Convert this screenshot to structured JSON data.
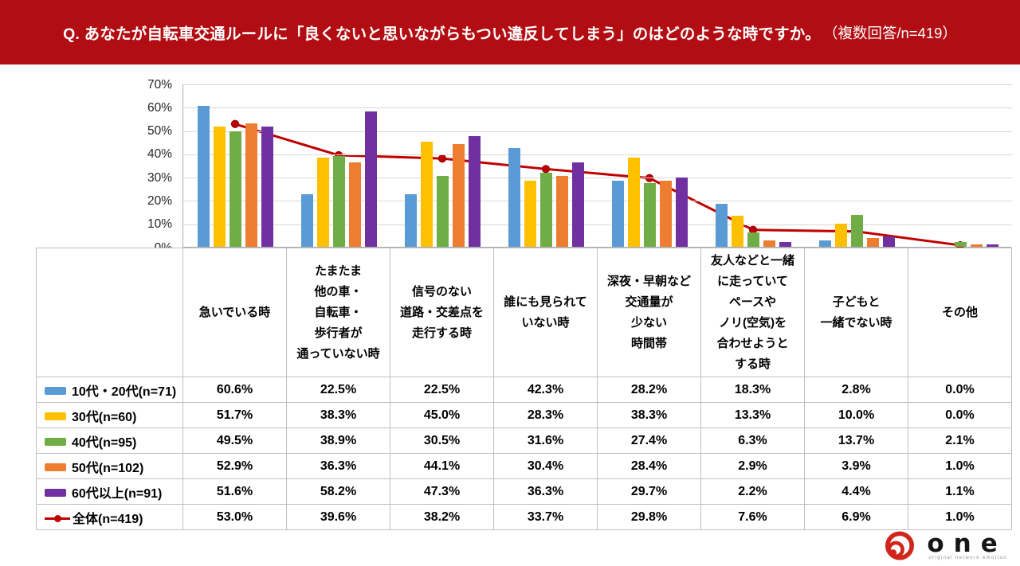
{
  "banner": {
    "question_bold": "Q. あなたが自転車交通ルールに「良くないと思いながらもつい違反してしまう」のはどのような時ですか。",
    "question_suffix": "（複数回答/n=419）",
    "bg_color": "#B10D12"
  },
  "chart_data": {
    "type": "bar",
    "subtype": "grouped-bars-with-overall-line",
    "title": "",
    "xlabel": "",
    "ylabel": "",
    "ylim": [
      0,
      70
    ],
    "grid": true,
    "legend_position": "table-left",
    "y_ticks": [
      "70%",
      "60%",
      "50%",
      "40%",
      "30%",
      "20%",
      "10%",
      "0%"
    ],
    "categories": [
      "急いでいる時",
      "たまたま他の車・自転車・歩行者が通っていない時",
      "信号のない道路・交差点を走行する時",
      "誰にも見られていない時",
      "深夜・早朝など交通量が少ない時間帯",
      "友人などと一緒に走っていてペースやノリ(空気)を合わせようとする時",
      "子どもと一緒でない時",
      "その他"
    ],
    "categories_display": [
      [
        "急いでいる時"
      ],
      [
        "たまたま",
        "他の車・",
        "自転車・",
        "歩行者が",
        "通っていない時"
      ],
      [
        "信号のない",
        "道路・交差点を",
        "走行する時"
      ],
      [
        "誰にも見られて",
        "いない時"
      ],
      [
        "深夜・早朝など",
        "交通量が",
        "少ない",
        "時間帯"
      ],
      [
        "友人などと一緒",
        "に走っていて",
        "ペースや",
        "ノリ(空気)を",
        "合わせようと",
        "する時"
      ],
      [
        "子どもと",
        "一緒でない時"
      ],
      [
        "その他"
      ]
    ],
    "series": [
      {
        "name": "10代・20代(n=71)",
        "type": "bar",
        "color": "#5B9BD5",
        "values": [
          60.6,
          22.5,
          22.5,
          42.3,
          28.2,
          18.3,
          2.8,
          0.0
        ]
      },
      {
        "name": "30代(n=60)",
        "type": "bar",
        "color": "#FFC000",
        "values": [
          51.7,
          38.3,
          45.0,
          28.3,
          38.3,
          13.3,
          10.0,
          0.0
        ]
      },
      {
        "name": "40代(n=95)",
        "type": "bar",
        "color": "#70AD47",
        "values": [
          49.5,
          38.9,
          30.5,
          31.6,
          27.4,
          6.3,
          13.7,
          2.1
        ]
      },
      {
        "name": "50代(n=102)",
        "type": "bar",
        "color": "#ED7D31",
        "values": [
          52.9,
          36.3,
          44.1,
          30.4,
          28.4,
          2.9,
          3.9,
          1.0
        ]
      },
      {
        "name": "60代以上(n=91)",
        "type": "bar",
        "color": "#7030A0",
        "values": [
          51.6,
          58.2,
          47.3,
          36.3,
          29.7,
          2.2,
          4.4,
          1.1
        ]
      },
      {
        "name": "全体(n=419)",
        "type": "line",
        "color": "#C00000",
        "values": [
          53.0,
          39.6,
          38.2,
          33.7,
          29.8,
          7.6,
          6.9,
          1.0
        ]
      }
    ]
  },
  "logo": {
    "text": "one",
    "tagline": "original network emotion",
    "icon": "one-spiral-icon",
    "icon_color": "#D1261C"
  }
}
